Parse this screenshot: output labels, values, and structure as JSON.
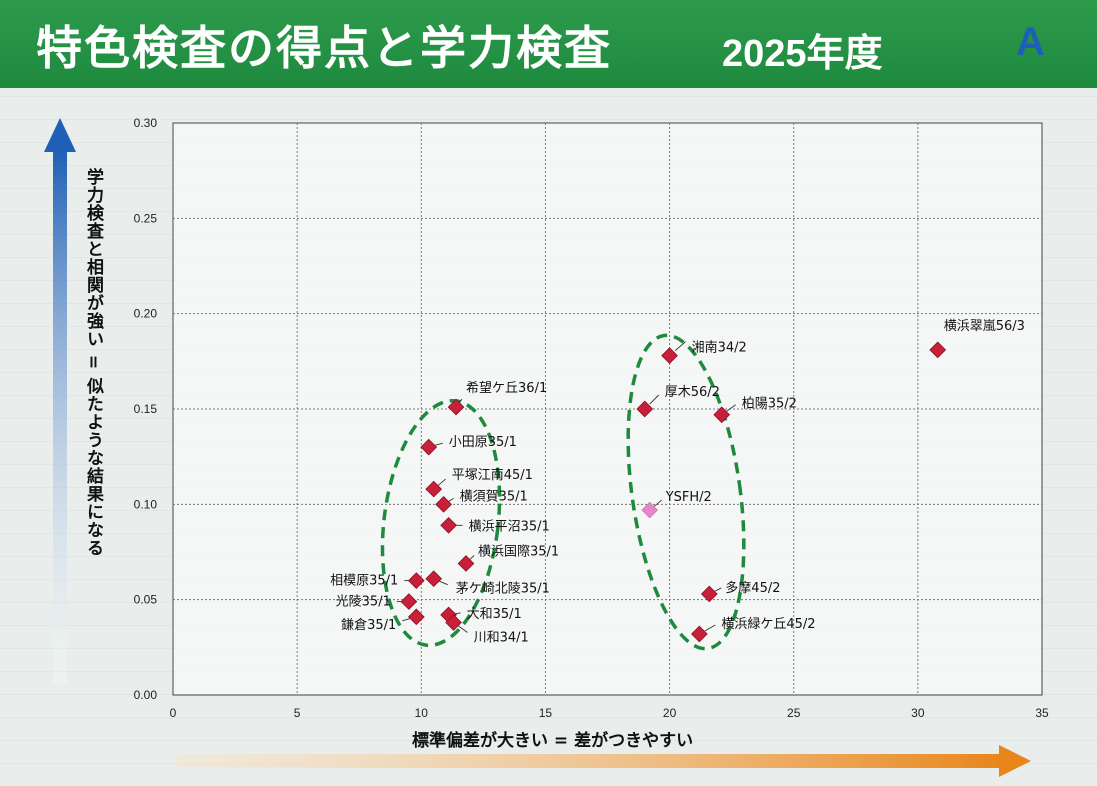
{
  "header": {
    "title": "特色検査の得点と学力検査",
    "year": "2025年度",
    "badge": "A"
  },
  "colors": {
    "banner": "#1e8a3e",
    "marker": "#c8203a",
    "marker_highlight": "#e887c8",
    "ellipse": "#1e8a3e",
    "y_arrow": "#1f5fb5",
    "x_arrow": "#e8861a"
  },
  "chart_data": {
    "type": "scatter",
    "title": "",
    "xlabel": "標準偏差が大きい = 差がつきやすい",
    "ylabel": "学力検査と相関が強い = 似たような結果になる",
    "xlim": [
      0,
      35
    ],
    "ylim": [
      0,
      0.3
    ],
    "x_ticks": [
      "0",
      "5",
      "10",
      "15",
      "20",
      "25",
      "30",
      "35"
    ],
    "y_ticks": [
      "0.00",
      "0.05",
      "0.10",
      "0.15",
      "0.20",
      "0.25",
      "0.30"
    ],
    "grid": true,
    "points": [
      {
        "label": "横浜翠嵐56/3",
        "x": 30.8,
        "y": 0.181
      },
      {
        "label": "湘南34/2",
        "x": 20.0,
        "y": 0.178
      },
      {
        "label": "厚木56/2",
        "x": 19.0,
        "y": 0.15
      },
      {
        "label": "柏陽35/2",
        "x": 22.1,
        "y": 0.147
      },
      {
        "label": "YSFH/2",
        "x": 19.2,
        "y": 0.097,
        "highlight": true
      },
      {
        "label": "多摩45/2",
        "x": 21.6,
        "y": 0.053
      },
      {
        "label": "横浜緑ケ丘45/2",
        "x": 21.2,
        "y": 0.032
      },
      {
        "label": "希望ケ丘36/1",
        "x": 11.4,
        "y": 0.151
      },
      {
        "label": "小田原35/1",
        "x": 10.3,
        "y": 0.13
      },
      {
        "label": "平塚江南45/1",
        "x": 10.5,
        "y": 0.108
      },
      {
        "label": "横須賀35/1",
        "x": 10.9,
        "y": 0.1
      },
      {
        "label": "横浜平沼35/1",
        "x": 11.1,
        "y": 0.089
      },
      {
        "label": "横浜国際35/1",
        "x": 11.8,
        "y": 0.069
      },
      {
        "label": "相模原35/1",
        "x": 9.8,
        "y": 0.06
      },
      {
        "label": "茅ケ崎北陵35/1",
        "x": 10.5,
        "y": 0.061
      },
      {
        "label": "光陵35/1",
        "x": 9.5,
        "y": 0.049
      },
      {
        "label": "大和35/1",
        "x": 11.1,
        "y": 0.042
      },
      {
        "label": "鎌倉35/1",
        "x": 9.8,
        "y": 0.041
      },
      {
        "label": "川和34/1",
        "x": 11.3,
        "y": 0.038
      }
    ]
  }
}
